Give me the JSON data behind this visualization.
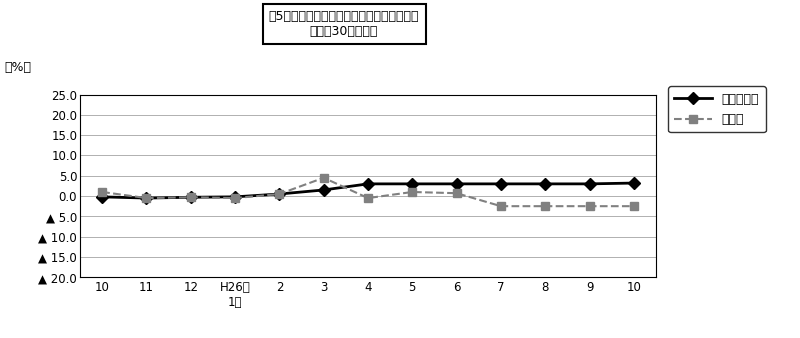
{
  "x_labels": [
    "10",
    "11",
    "12",
    "H26年\n1月",
    "2",
    "3",
    "4",
    "5",
    "6",
    "7",
    "8",
    "9",
    "10"
  ],
  "x_positions": [
    0,
    1,
    2,
    3,
    4,
    5,
    6,
    7,
    8,
    9,
    10,
    11,
    12
  ],
  "series1_name": "調査産業計",
  "series1_values": [
    -0.2,
    -0.5,
    -0.3,
    -0.2,
    0.5,
    1.5,
    3.0,
    3.0,
    3.0,
    3.0,
    3.0,
    3.0,
    3.2
  ],
  "series1_color": "#000000",
  "series1_linestyle": "solid",
  "series1_marker": "D",
  "series2_name": "製造業",
  "series2_values": [
    1.0,
    -0.5,
    -0.3,
    -0.5,
    0.5,
    4.5,
    -0.5,
    1.0,
    0.7,
    -2.5,
    -2.5,
    -2.5,
    -2.5
  ],
  "series2_color": "#808080",
  "series2_linestyle": "dashed",
  "series2_marker": "s",
  "ylim": [
    -20.0,
    25.0
  ],
  "yticks": [
    25.0,
    20.0,
    15.0,
    10.0,
    5.0,
    0.0,
    -5.0,
    -10.0,
    -15.0,
    -20.0
  ],
  "ylabel": "（%）",
  "title_line1": "図5　常用労働者数の推移（対前年同月比）",
  "title_line2": "－規模30人以上－",
  "background_color": "#ffffff",
  "grid_color": "#b0b0b0",
  "series1_legend": "調査産業計",
  "series2_legend": "製造業"
}
